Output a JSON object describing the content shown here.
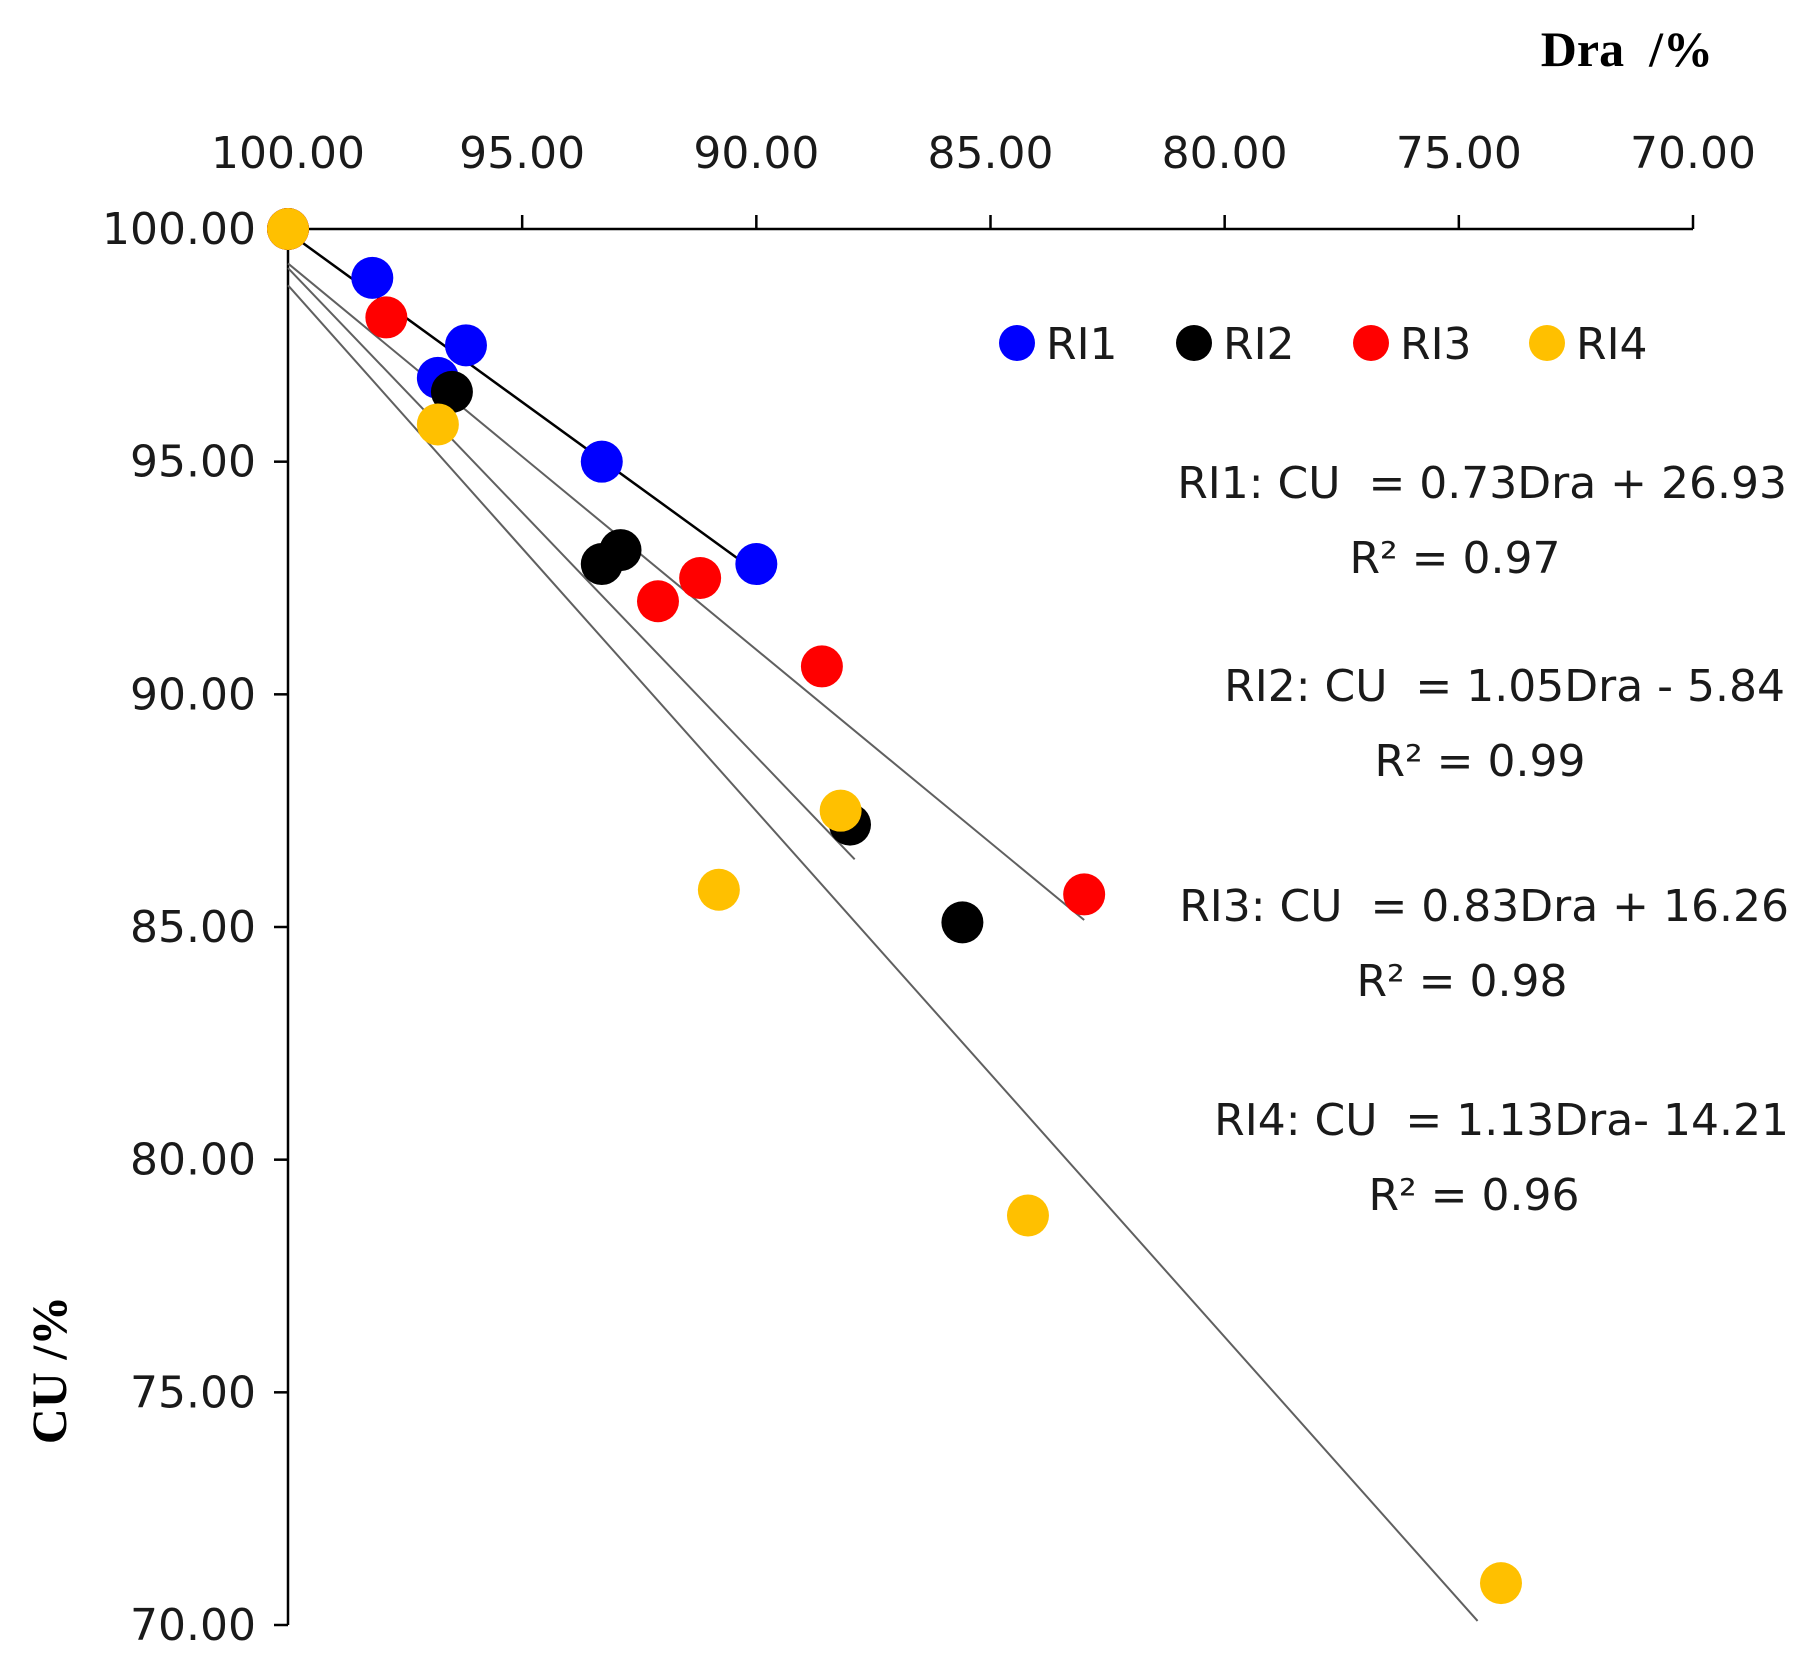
{
  "chart_data": {
    "type": "scatter",
    "title": "",
    "xlabel": "Dra  /%",
    "ylabel": "CU /%",
    "x_axis": {
      "reversed": true,
      "min": 70,
      "max": 100,
      "position": "top",
      "ticks": [
        100,
        95,
        90,
        85,
        80,
        75,
        70
      ],
      "tick_labels": [
        "100.00",
        "95.00",
        "90.00",
        "85.00",
        "80.00",
        "75.00",
        "70.00"
      ]
    },
    "y_axis": {
      "min": 70,
      "max": 100,
      "ticks": [
        100,
        95,
        90,
        85,
        80,
        75,
        70
      ],
      "tick_labels": [
        "100.00",
        "95.00",
        "90.00",
        "85.00",
        "80.00",
        "75.00",
        "70.00"
      ]
    },
    "grid": false,
    "legend_position": "top-right",
    "series": [
      {
        "name": "RI1",
        "color": "#0000ff",
        "line_color": "#000000",
        "points": [
          {
            "x": 100.0,
            "y": 100.0
          },
          {
            "x": 98.2,
            "y": 98.95
          },
          {
            "x": 96.8,
            "y": 96.8
          },
          {
            "x": 96.2,
            "y": 97.5
          },
          {
            "x": 93.3,
            "y": 95.0
          },
          {
            "x": 90.0,
            "y": 92.8
          }
        ],
        "fit_range": [
          100.0,
          90.0
        ],
        "equation": "RI1: CU  = 0.73Dra + 26.93",
        "r2": "R² = 0.97"
      },
      {
        "name": "RI2",
        "color": "#000000",
        "line_color": "#606060",
        "points": [
          {
            "x": 100.0,
            "y": 100.0
          },
          {
            "x": 96.5,
            "y": 96.5
          },
          {
            "x": 93.3,
            "y": 92.8
          },
          {
            "x": 92.9,
            "y": 93.1
          },
          {
            "x": 88.0,
            "y": 87.2
          },
          {
            "x": 85.6,
            "y": 85.1
          }
        ],
        "fit_range": [
          100.0,
          87.9
        ],
        "equation": "RI2: CU  = 1.05Dra - 5.84",
        "r2": "R² = 0.99"
      },
      {
        "name": "RI3",
        "color": "#ff0000",
        "line_color": "#606060",
        "points": [
          {
            "x": 100.0,
            "y": 100.0
          },
          {
            "x": 97.9,
            "y": 98.1
          },
          {
            "x": 92.1,
            "y": 92.0
          },
          {
            "x": 91.2,
            "y": 92.5
          },
          {
            "x": 88.6,
            "y": 90.6
          },
          {
            "x": 83.0,
            "y": 85.7
          }
        ],
        "fit_range": [
          100.0,
          83.0
        ],
        "equation": "RI3: CU  = 0.83Dra + 16.26",
        "r2": "R² = 0.98"
      },
      {
        "name": "RI4",
        "color": "#ffc000",
        "line_color": "#606060",
        "points": [
          {
            "x": 100.0,
            "y": 100.0
          },
          {
            "x": 96.8,
            "y": 95.8
          },
          {
            "x": 90.8,
            "y": 85.8
          },
          {
            "x": 88.2,
            "y": 87.5
          },
          {
            "x": 84.2,
            "y": 78.8
          },
          {
            "x": 74.1,
            "y": 70.9
          }
        ],
        "fit_range": [
          100.0,
          74.6
        ],
        "equation": "RI4: CU  = 1.13Dra- 14.21",
        "r2": "R² = 0.96"
      }
    ]
  }
}
